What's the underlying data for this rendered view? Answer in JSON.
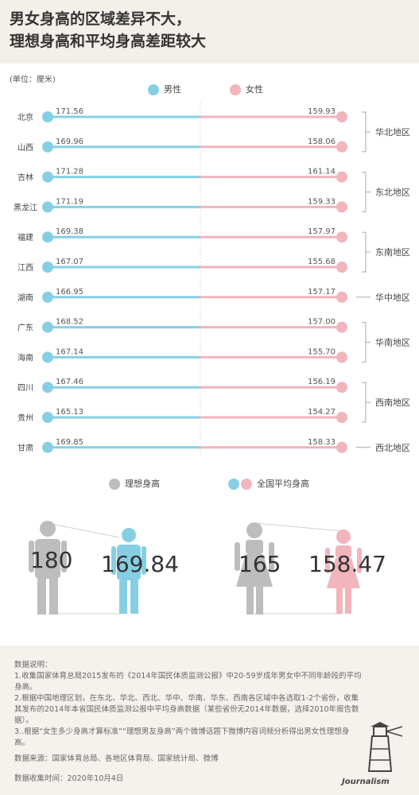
{
  "header": {
    "title_line1": "男女身高的区域差异不大，",
    "title_line2": "理想身高和平均身高差距较大"
  },
  "unit": "(单位：厘米)",
  "legend_top": {
    "male": "男性",
    "female": "女性"
  },
  "colors": {
    "male": "#86cfe3",
    "female": "#f2b4bd",
    "grey": "#bdbdbd",
    "header_bg": "#f3efe9"
  },
  "chart_data": {
    "type": "bar",
    "categories": [
      "北京",
      "山西",
      "吉林",
      "黑龙江",
      "福建",
      "江西",
      "湖南",
      "广东",
      "海南",
      "四川",
      "贵州",
      "甘肃"
    ],
    "series": [
      {
        "name": "男性",
        "values": [
          171.56,
          169.96,
          171.28,
          171.19,
          169.38,
          167.07,
          166.95,
          168.52,
          167.14,
          167.46,
          165.13,
          169.85
        ]
      },
      {
        "name": "女性",
        "values": [
          159.93,
          158.06,
          161.14,
          159.33,
          157.97,
          155.68,
          157.17,
          157.0,
          155.7,
          156.19,
          154.27,
          158.33
        ]
      }
    ],
    "value_labels": {
      "male": [
        "171.56",
        "169.96",
        "171.28",
        "171.19",
        "169.38",
        "167.07",
        "166.95",
        "168.52",
        "167.14",
        "167.46",
        "165.13",
        "169.85"
      ],
      "female": [
        "159.93",
        "158.06",
        "161.14",
        "159.33",
        "157.97",
        "155.68",
        "157.17",
        "157.00",
        "155.70",
        "156.19",
        "154.27",
        "158.33"
      ]
    },
    "regions": [
      {
        "name": "华北地区",
        "provinces": [
          "北京",
          "山西"
        ]
      },
      {
        "name": "东北地区",
        "provinces": [
          "吉林",
          "黑龙江"
        ]
      },
      {
        "name": "东南地区",
        "provinces": [
          "福建",
          "江西"
        ]
      },
      {
        "name": "华中地区",
        "provinces": [
          "湖南"
        ]
      },
      {
        "name": "华南地区",
        "provinces": [
          "广东",
          "海南"
        ]
      },
      {
        "name": "西南地区",
        "provinces": [
          "四川",
          "贵州"
        ]
      },
      {
        "name": "西北地区",
        "provinces": [
          "甘肃"
        ]
      }
    ]
  },
  "legend_bottom": {
    "ideal": "理想身高",
    "average": "全国平均身高"
  },
  "comparison": {
    "male_ideal": "180",
    "male_average": "169.84",
    "female_ideal": "165",
    "female_average": "158.47"
  },
  "notes": {
    "heading": "数据说明：",
    "line1": "1.收集国家体育总局2015发布的《2014年国民体质监测公报》中20-59岁成年男女中不同年龄段的平均身高。",
    "line2": "2.根据中国地理区划，在东北、华北、西北、华中、华南、华东、西南各区域中各选取1-2个省份，收集其发布的2014年本省国民体质监测公报中平均身高数据（某些省份无2014年数据，选择2010年报告数据）。",
    "line3": "3..根据“女生多少身高才算标准”“理想男友身高”两个微博话题下微博内容词频分析得出男女性理想身高。",
    "source": "数据来源：国家体育总局、各地区体育局、国家统计局、微博",
    "time": "数据收集时间：2020年10月4日"
  },
  "logo": "Journalism"
}
